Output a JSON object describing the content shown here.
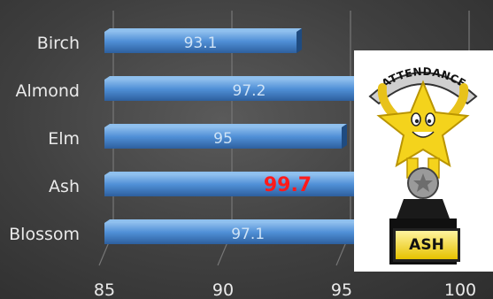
{
  "chart_data": {
    "type": "bar",
    "orientation": "horizontal",
    "categories": [
      "Birch",
      "Almond",
      "Elm",
      "Ash",
      "Blossom"
    ],
    "values": [
      93.1,
      97.2,
      95,
      99.7,
      97.1
    ],
    "xlim": [
      85,
      100
    ],
    "xticks": [
      "85",
      "90",
      "95",
      "100"
    ],
    "highlight": {
      "category": "Ash",
      "label": "99.7",
      "color": "#ff1a1a"
    },
    "title": "",
    "xlabel": "",
    "ylabel": "",
    "grid": true,
    "bar_color": "#4f8fd6"
  },
  "trophy": {
    "banner_text": "ATTENDANCE",
    "plaque_text": "ASH"
  }
}
